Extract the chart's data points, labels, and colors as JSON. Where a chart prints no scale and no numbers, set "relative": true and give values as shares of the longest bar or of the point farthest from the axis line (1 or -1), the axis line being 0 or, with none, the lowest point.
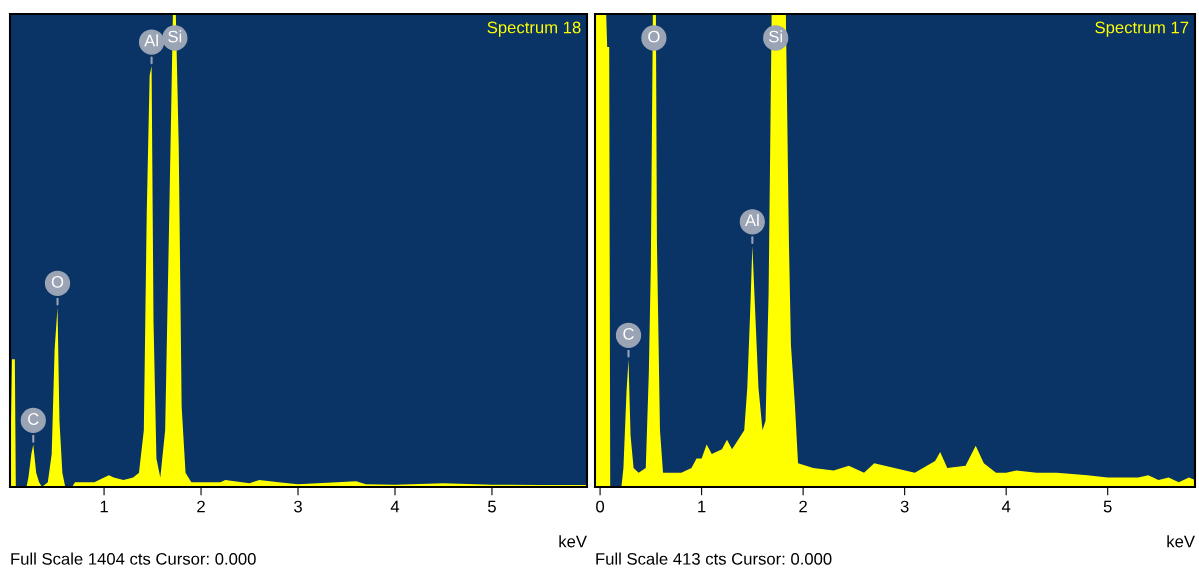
{
  "chart_data": [
    {
      "type": "area",
      "title": "Spectrum 18",
      "xlabel": "keV",
      "relative": true,
      "tick_labels": "x",
      "xlim": [
        0.03,
        5.98
      ],
      "xticks": [
        1,
        2,
        3,
        4,
        5
      ],
      "annotations": [
        "Full Scale 1404 cts Cursor: 0.000",
        {
          "text": "C",
          "x": 0.27,
          "y": 0.09
        },
        {
          "text": "O",
          "x": 0.52,
          "y": 0.38
        },
        {
          "text": "Al",
          "x": 1.49,
          "y": 0.89
        },
        {
          "text": "Si",
          "x": 1.73,
          "y": 1.0
        }
      ],
      "series": [
        {
          "color": "#ffff00",
          "x": [
            0.03,
            0.05,
            0.08,
            0.09,
            0.2,
            0.22,
            0.25,
            0.27,
            0.3,
            0.33,
            0.36,
            0.42,
            0.46,
            0.49,
            0.52,
            0.54,
            0.57,
            0.6,
            0.67,
            0.7,
            0.9,
            1.0,
            1.05,
            1.1,
            1.2,
            1.3,
            1.36,
            1.41,
            1.44,
            1.47,
            1.49,
            1.51,
            1.54,
            1.58,
            1.63,
            1.67,
            1.71,
            1.74,
            1.77,
            1.8,
            1.84,
            1.9,
            2.2,
            2.25,
            2.5,
            2.6,
            2.8,
            3.0,
            3.6,
            3.7,
            4.0,
            4.5,
            5.0,
            5.5,
            5.98
          ],
          "values": [
            0,
            0.27,
            0.27,
            0,
            0,
            0.02,
            0.07,
            0.09,
            0.03,
            0.01,
            0,
            0.01,
            0.07,
            0.29,
            0.38,
            0.14,
            0.03,
            0,
            0,
            0.01,
            0.01,
            0.02,
            0.025,
            0.02,
            0.015,
            0.02,
            0.03,
            0.12,
            0.58,
            0.87,
            0.89,
            0.35,
            0.06,
            0.02,
            0.12,
            0.55,
            1.0,
            1.0,
            0.72,
            0.17,
            0.03,
            0.01,
            0.01,
            0.015,
            0.008,
            0.015,
            0.01,
            0.006,
            0.012,
            0.006,
            0.005,
            0.008,
            0.005,
            0.004,
            0.004
          ]
        }
      ]
    },
    {
      "type": "area",
      "title": "Spectrum 17",
      "xlabel": "keV",
      "relative": true,
      "tick_labels": "x",
      "xlim": [
        -0.05,
        5.86
      ],
      "xticks": [
        0,
        1,
        2,
        3,
        4,
        5
      ],
      "annotations": [
        "Full Scale 413 cts Cursor: 0.000",
        {
          "text": "C",
          "x": 0.28,
          "y": 0.27
        },
        {
          "text": "O",
          "x": 0.53,
          "y": 1.0
        },
        {
          "text": "Al",
          "x": 1.5,
          "y": 0.51
        },
        {
          "text": "Si",
          "x": 1.73,
          "y": 1.0
        }
      ],
      "series": [
        {
          "color": "#ffff00",
          "x": [
            -0.05,
            0.06,
            0.07,
            0.09,
            0.1,
            0.21,
            0.23,
            0.26,
            0.28,
            0.3,
            0.33,
            0.38,
            0.45,
            0.48,
            0.5,
            0.52,
            0.55,
            0.56,
            0.59,
            0.62,
            0.8,
            0.9,
            0.95,
            1.0,
            1.05,
            1.1,
            1.2,
            1.25,
            1.3,
            1.36,
            1.42,
            1.45,
            1.48,
            1.5,
            1.53,
            1.56,
            1.6,
            1.63,
            1.66,
            1.69,
            1.83,
            1.86,
            1.88,
            1.92,
            1.95,
            2.1,
            2.3,
            2.45,
            2.6,
            2.7,
            2.9,
            3.1,
            3.3,
            3.35,
            3.42,
            3.6,
            3.7,
            3.78,
            3.9,
            4.0,
            4.1,
            4.3,
            4.5,
            4.8,
            5.0,
            5.3,
            5.4,
            5.5,
            5.6,
            5.7,
            5.8,
            5.86
          ],
          "values": [
            1.0,
            1.0,
            0.93,
            0.93,
            0,
            0,
            0.04,
            0.2,
            0.27,
            0.11,
            0.04,
            0.03,
            0.04,
            0.24,
            0.47,
            1.0,
            1.0,
            0.52,
            0.12,
            0.03,
            0.03,
            0.04,
            0.06,
            0.06,
            0.09,
            0.07,
            0.08,
            0.1,
            0.08,
            0.1,
            0.12,
            0.21,
            0.38,
            0.51,
            0.36,
            0.21,
            0.12,
            0.14,
            0.41,
            1.0,
            1.0,
            0.52,
            0.3,
            0.17,
            0.05,
            0.04,
            0.035,
            0.045,
            0.03,
            0.05,
            0.04,
            0.03,
            0.055,
            0.074,
            0.04,
            0.045,
            0.087,
            0.05,
            0.03,
            0.03,
            0.035,
            0.03,
            0.03,
            0.025,
            0.02,
            0.02,
            0.025,
            0.015,
            0.02,
            0.01,
            0.02,
            0.015
          ]
        }
      ]
    }
  ]
}
